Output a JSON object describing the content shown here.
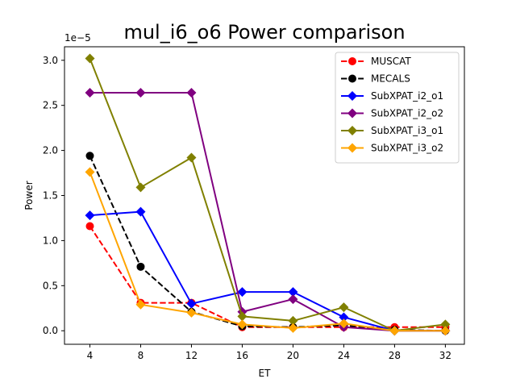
{
  "chart_data": {
    "type": "line",
    "title": "mul_i6_o6 Power comparison",
    "xlabel": "ET",
    "ylabel": "Power",
    "y_scale_note": "1e−5",
    "x": [
      4,
      8,
      12,
      16,
      20,
      24,
      28,
      32
    ],
    "xlim": [
      2.0,
      33.5
    ],
    "ylim": [
      -0.15,
      3.15
    ],
    "y_ticks": [
      0.0,
      0.5,
      1.0,
      1.5,
      2.0,
      2.5,
      3.0
    ],
    "y_tick_labels": [
      "0.0",
      "0.5",
      "1.0",
      "1.5",
      "2.0",
      "2.5",
      "3.0"
    ],
    "legend_position": "upper-right",
    "grid": false,
    "series": [
      {
        "name": "MUSCAT",
        "color": "#ff0000",
        "dash": true,
        "marker": "circle",
        "values": [
          1.16,
          0.31,
          0.31,
          0.04,
          0.04,
          0.04,
          0.04,
          0.04
        ]
      },
      {
        "name": "MECALS",
        "color": "#000000",
        "dash": true,
        "marker": "circle",
        "values": [
          1.94,
          0.71,
          0.21,
          0.05,
          0.04,
          0.06,
          0.01,
          0.0
        ]
      },
      {
        "name": "SubXPAT_i2_o1",
        "color": "#0000ff",
        "dash": false,
        "marker": "diamond",
        "values": [
          1.28,
          1.32,
          0.3,
          0.43,
          0.43,
          0.15,
          0.0,
          0.0
        ]
      },
      {
        "name": "SubXPAT_i2_o2",
        "color": "#800080",
        "dash": false,
        "marker": "diamond",
        "values": [
          2.64,
          2.64,
          2.64,
          0.21,
          0.35,
          0.04,
          0.0,
          0.0
        ]
      },
      {
        "name": "SubXPAT_i3_o1",
        "color": "#808000",
        "dash": false,
        "marker": "diamond",
        "values": [
          3.02,
          1.59,
          1.92,
          0.16,
          0.11,
          0.26,
          0.0,
          0.07
        ]
      },
      {
        "name": "SubXPAT_i3_o2",
        "color": "#ffa500",
        "dash": false,
        "marker": "diamond",
        "values": [
          1.76,
          0.29,
          0.2,
          0.07,
          0.03,
          0.08,
          0.0,
          0.0
        ]
      }
    ]
  }
}
